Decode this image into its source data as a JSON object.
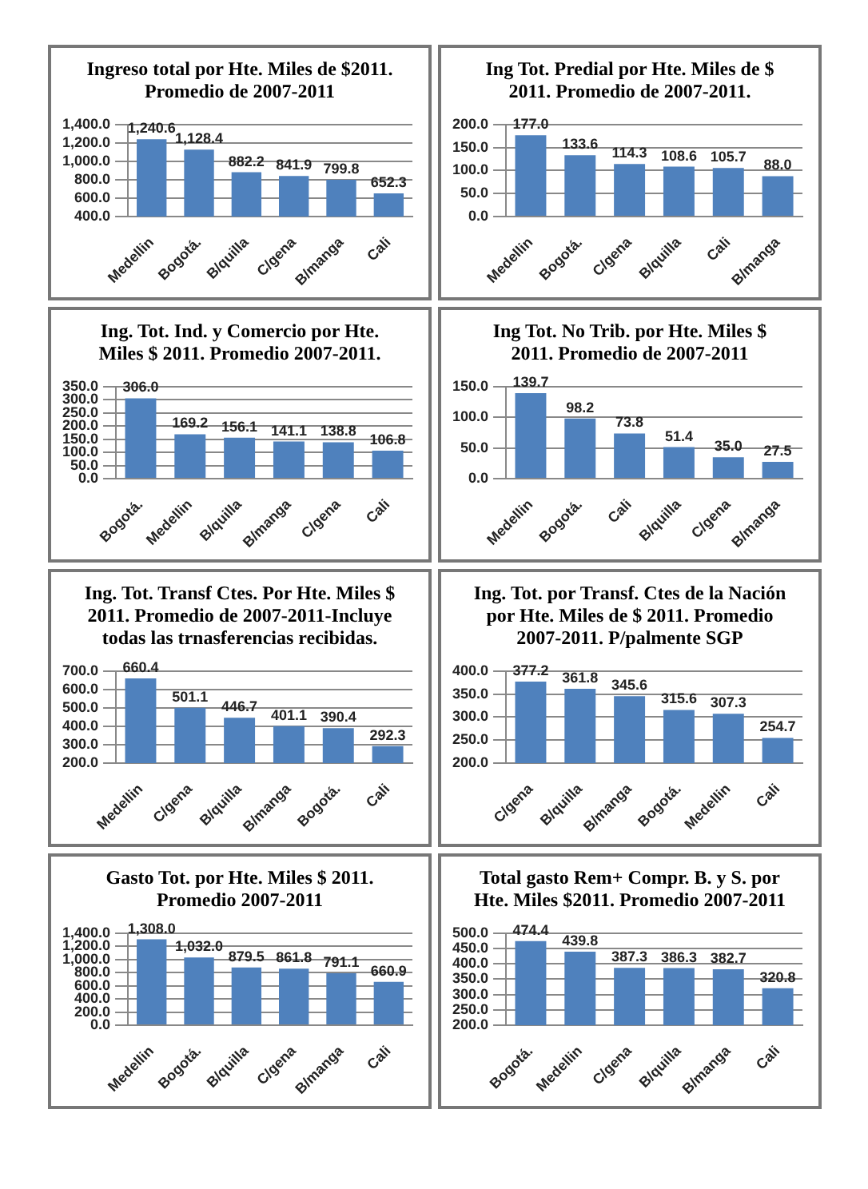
{
  "chart_data": [
    {
      "type": "bar",
      "title": "Ingreso total  por Hte. Miles de $2011. Promedio de 2007-2011",
      "categories": [
        "Medellin",
        "Bogotá.",
        "B/quilla",
        "C/gena",
        "B/manga",
        "Cali"
      ],
      "values": [
        1240.6,
        1128.4,
        882.2,
        841.9,
        799.8,
        652.3
      ],
      "value_labels": [
        "1,240.6",
        "1,128.4",
        "882.2",
        "841.9",
        "799.8",
        "652.3"
      ],
      "color": "#4f81bd",
      "ylim": [
        400,
        1400
      ],
      "yticks": [
        {
          "value": 400,
          "label": "400.0"
        },
        {
          "value": 600,
          "label": "600.0"
        },
        {
          "value": 800,
          "label": "800.0"
        },
        {
          "value": 1000,
          "label": "1,000.0"
        },
        {
          "value": 1200,
          "label": "1,200.0"
        },
        {
          "value": 1400,
          "label": "1,400.0"
        }
      ],
      "grid": "y"
    },
    {
      "type": "bar",
      "title": "Ing Tot. Predial  por Hte. Miles de $ 2011. Promedio  de 2007-2011.",
      "categories": [
        "Medellin",
        "Bogotá.",
        "C/gena",
        "B/quilla",
        "Cali",
        "B/manga"
      ],
      "values": [
        177.0,
        133.6,
        114.3,
        108.6,
        105.7,
        88.0
      ],
      "value_labels": [
        "177.0",
        "133.6",
        "114.3",
        "108.6",
        "105.7",
        "88.0"
      ],
      "color": "#4f81bd",
      "ylim": [
        0,
        200
      ],
      "yticks": [
        {
          "value": 0,
          "label": "0.0"
        },
        {
          "value": 50,
          "label": "50.0"
        },
        {
          "value": 100,
          "label": "100.0"
        },
        {
          "value": 150,
          "label": "150.0"
        },
        {
          "value": 200,
          "label": "200.0"
        }
      ],
      "grid": "y"
    },
    {
      "type": "bar",
      "title": "Ing. Tot. Ind. y Comercio por Hte. Miles $ 2011. Promedio 2007-2011.",
      "categories": [
        "Bogotá.",
        "Medellin",
        "B/quilla",
        "B/manga",
        "C/gena",
        "Cali"
      ],
      "values": [
        306.0,
        169.2,
        156.1,
        141.1,
        138.8,
        106.8
      ],
      "value_labels": [
        "306.0",
        "169.2",
        "156.1",
        "141.1",
        "138.8",
        "106.8"
      ],
      "color": "#4f81bd",
      "ylim": [
        0,
        350
      ],
      "yticks": [
        {
          "value": 0,
          "label": "0.0"
        },
        {
          "value": 50,
          "label": "50.0"
        },
        {
          "value": 100,
          "label": "100.0"
        },
        {
          "value": 150,
          "label": "150.0"
        },
        {
          "value": 200,
          "label": "200.0"
        },
        {
          "value": 250,
          "label": "250.0"
        },
        {
          "value": 300,
          "label": "300.0"
        },
        {
          "value": 350,
          "label": "350.0"
        }
      ],
      "grid": "y"
    },
    {
      "type": "bar",
      "title": "Ing Tot. No Trib. por Hte. Miles $ 2011. Promedio de 2007-2011",
      "categories": [
        "Medellin",
        "Bogotá.",
        "Cali",
        "B/quilla",
        "C/gena",
        "B/manga"
      ],
      "values": [
        139.7,
        98.2,
        73.8,
        51.4,
        35.0,
        27.5
      ],
      "value_labels": [
        "139.7",
        "98.2",
        "73.8",
        "51.4",
        "35.0",
        "27.5"
      ],
      "color": "#4f81bd",
      "ylim": [
        0,
        150
      ],
      "yticks": [
        {
          "value": 0,
          "label": "0.0"
        },
        {
          "value": 50,
          "label": "50.0"
        },
        {
          "value": 100,
          "label": "100.0"
        },
        {
          "value": 150,
          "label": "150.0"
        }
      ],
      "grid": "y"
    },
    {
      "type": "bar",
      "title": "Ing. Tot. Transf Ctes. Por Hte. Miles  $ 2011. Promedio de 2007-2011-Incluye todas las trnasferencias recibidas.",
      "categories": [
        "Medellin",
        "C/gena",
        "B/quilla",
        "B/manga",
        "Bogotá.",
        "Cali"
      ],
      "values": [
        660.4,
        501.1,
        446.7,
        401.1,
        390.4,
        292.3
      ],
      "value_labels": [
        "660.4",
        "501.1",
        "446.7",
        "401.1",
        "390.4",
        "292.3"
      ],
      "color": "#4f81bd",
      "ylim": [
        200,
        700
      ],
      "yticks": [
        {
          "value": 200,
          "label": "200.0"
        },
        {
          "value": 300,
          "label": "300.0"
        },
        {
          "value": 400,
          "label": "400.0"
        },
        {
          "value": 500,
          "label": "500.0"
        },
        {
          "value": 600,
          "label": "600.0"
        },
        {
          "value": 700,
          "label": "700.0"
        }
      ],
      "grid": "y"
    },
    {
      "type": "bar",
      "title": "Ing. Tot. por Transf. Ctes de la Nación por Hte. Miles de $ 2011. Promedio 2007-2011. P/palmente SGP",
      "categories": [
        "C/gena",
        "B/quilla",
        "B/manga",
        "Bogotá.",
        "Medellin",
        "Cali"
      ],
      "values": [
        377.2,
        361.8,
        345.6,
        315.6,
        307.3,
        254.7
      ],
      "value_labels": [
        "377.2",
        "361.8",
        "345.6",
        "315.6",
        "307.3",
        "254.7"
      ],
      "color": "#4f81bd",
      "ylim": [
        200,
        400
      ],
      "yticks": [
        {
          "value": 200,
          "label": "200.0"
        },
        {
          "value": 250,
          "label": "250.0"
        },
        {
          "value": 300,
          "label": "300.0"
        },
        {
          "value": 350,
          "label": "350.0"
        },
        {
          "value": 400,
          "label": "400.0"
        }
      ],
      "grid": "y"
    },
    {
      "type": "bar",
      "title": "Gasto Tot. por Hte. Miles $ 2011. Promedio 2007-2011",
      "categories": [
        "Medellin",
        "Bogotá.",
        "B/quilla",
        "C/gena",
        "B/manga",
        "Cali"
      ],
      "values": [
        1308.0,
        1032.0,
        879.5,
        861.8,
        791.1,
        660.9
      ],
      "value_labels": [
        "1,308.0",
        "1,032.0",
        "879.5",
        "861.8",
        "791.1",
        "660.9"
      ],
      "color": "#4f81bd",
      "ylim": [
        0,
        1400
      ],
      "yticks": [
        {
          "value": 0,
          "label": "0.0"
        },
        {
          "value": 200,
          "label": "200.0"
        },
        {
          "value": 400,
          "label": "400.0"
        },
        {
          "value": 600,
          "label": "600.0"
        },
        {
          "value": 800,
          "label": "800.0"
        },
        {
          "value": 1000,
          "label": "1,000.0"
        },
        {
          "value": 1200,
          "label": "1,200.0"
        },
        {
          "value": 1400,
          "label": "1,400.0"
        }
      ],
      "grid": "y"
    },
    {
      "type": "bar",
      "title": "Total gasto Rem+ Compr. B. y S. por Hte. Miles $2011.  Promedio 2007-2011",
      "categories": [
        "Bogotá.",
        "Medellin",
        "C/gena",
        "B/quilla",
        "B/manga",
        "Cali"
      ],
      "values": [
        474.4,
        439.8,
        387.3,
        386.3,
        382.7,
        320.8
      ],
      "value_labels": [
        "474.4",
        "439.8",
        "387.3",
        "386.3",
        "382.7",
        "320.8"
      ],
      "color": "#4f81bd",
      "ylim": [
        200,
        500
      ],
      "yticks": [
        {
          "value": 200,
          "label": "200.0"
        },
        {
          "value": 250,
          "label": "250.0"
        },
        {
          "value": 300,
          "label": "300.0"
        },
        {
          "value": 350,
          "label": "350.0"
        },
        {
          "value": 400,
          "label": "400.0"
        },
        {
          "value": 450,
          "label": "450.0"
        },
        {
          "value": 500,
          "label": "500.0"
        }
      ],
      "grid": "y"
    }
  ]
}
